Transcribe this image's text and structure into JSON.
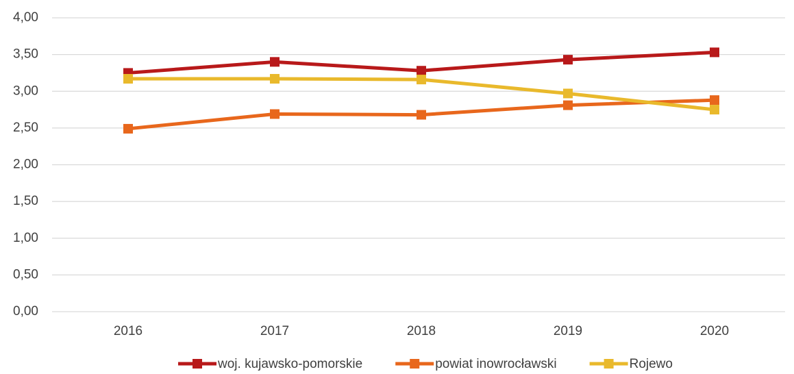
{
  "chart_data": {
    "type": "line",
    "categories": [
      "2016",
      "2017",
      "2018",
      "2019",
      "2020"
    ],
    "series": [
      {
        "name": "woj. kujawsko-pomorskie",
        "color": "#b8191a",
        "values": [
          3.25,
          3.4,
          3.28,
          3.43,
          3.53
        ]
      },
      {
        "name": "powiat inowrocławski",
        "color": "#e8671c",
        "values": [
          2.49,
          2.69,
          2.68,
          2.81,
          2.88
        ]
      },
      {
        "name": "Rojewo",
        "color": "#e9b92c",
        "values": [
          3.17,
          3.17,
          3.16,
          2.97,
          2.75
        ]
      }
    ],
    "ylim": [
      0,
      4
    ],
    "yticks": [
      {
        "value": 0,
        "label": "0,00"
      },
      {
        "value": 0.5,
        "label": "0,50"
      },
      {
        "value": 1,
        "label": "1,00"
      },
      {
        "value": 1.5,
        "label": "1,50"
      },
      {
        "value": 2,
        "label": "2,00"
      },
      {
        "value": 2.5,
        "label": "2,50"
      },
      {
        "value": 3,
        "label": "3,00"
      },
      {
        "value": 3.5,
        "label": "3,50"
      },
      {
        "value": 4,
        "label": "4,00"
      }
    ],
    "grid": true,
    "legend": "bottom"
  }
}
